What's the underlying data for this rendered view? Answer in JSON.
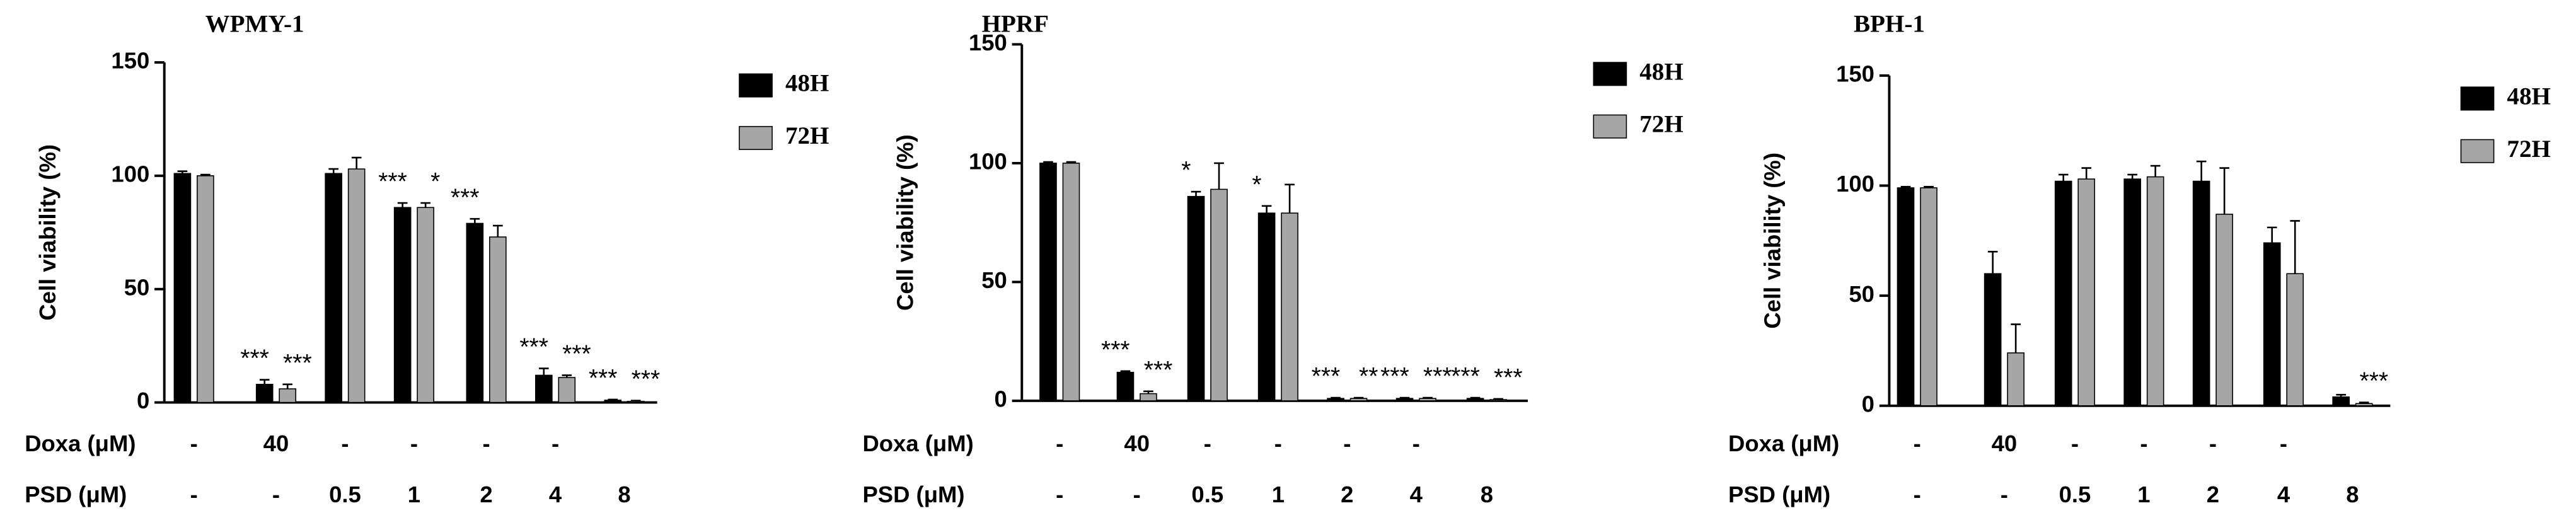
{
  "chart_data": [
    {
      "type": "bar",
      "title": "WPMY-1",
      "ylabel": "Cell viability (%)",
      "ylim": [
        0,
        150
      ],
      "yticks": [
        0,
        50,
        100,
        150
      ],
      "row_labels": [
        "Doxa (μM)",
        "PSD  (μM)"
      ],
      "doxa": [
        "-",
        "40",
        "-",
        "-",
        "-",
        "-",
        null
      ],
      "categories": [
        "-",
        "-",
        "0.5",
        "1",
        "2",
        "4",
        "8"
      ],
      "series": [
        {
          "name": "48H",
          "color": "#000000",
          "values": [
            101,
            8,
            101,
            86,
            79,
            12,
            1
          ],
          "errors": [
            1,
            2,
            2,
            2,
            2,
            3,
            0.3
          ],
          "annotations": [
            null,
            "***",
            null,
            "***",
            "***",
            "***",
            "***"
          ]
        },
        {
          "name": "72H",
          "color": "#a6a6a6",
          "values": [
            100,
            6,
            103,
            86,
            73,
            11,
            0.5
          ],
          "errors": [
            0.5,
            2,
            5,
            2,
            5,
            1,
            0.3
          ],
          "annotations": [
            null,
            "***",
            null,
            "*",
            null,
            "***",
            "***"
          ]
        }
      ]
    },
    {
      "type": "bar",
      "title": "HPRF",
      "ylabel": "Cell viability (%)",
      "ylim": [
        0,
        150
      ],
      "yticks": [
        0,
        50,
        100,
        150
      ],
      "row_labels": [
        "Doxa (μM)",
        "PSD  (μM)"
      ],
      "doxa": [
        "-",
        "40",
        "-",
        "-",
        "-",
        "-",
        null
      ],
      "categories": [
        "-",
        "-",
        "0.5",
        "1",
        "2",
        "4",
        "8"
      ],
      "series": [
        {
          "name": "48H",
          "color": "#000000",
          "values": [
            100,
            12,
            86,
            79,
            1,
            1,
            1
          ],
          "errors": [
            0.5,
            0.5,
            2,
            3,
            0.3,
            0.3,
            0.3
          ],
          "annotations": [
            null,
            "***",
            "*",
            "*",
            "***",
            "***",
            "***"
          ]
        },
        {
          "name": "72H",
          "color": "#a6a6a6",
          "values": [
            100,
            3,
            89,
            79,
            1,
            1,
            0.5
          ],
          "errors": [
            0.5,
            1,
            11,
            12,
            0.3,
            0.3,
            0.3
          ],
          "annotations": [
            null,
            "***",
            null,
            null,
            "**",
            "***",
            "***"
          ]
        }
      ]
    },
    {
      "type": "bar",
      "title": "BPH-1",
      "ylabel": "Cell viability (%)",
      "ylim": [
        0,
        150
      ],
      "yticks": [
        0,
        50,
        100,
        150
      ],
      "row_labels": [
        "Doxa (μM)",
        "PSD  (μM)"
      ],
      "doxa": [
        "-",
        "40",
        "-",
        "-",
        "-",
        "-",
        null
      ],
      "categories": [
        "-",
        "-",
        "0.5",
        "1",
        "2",
        "4",
        "8"
      ],
      "series": [
        {
          "name": "48H",
          "color": "#000000",
          "values": [
            99,
            60,
            102,
            103,
            102,
            74,
            4
          ],
          "errors": [
            0.5,
            10,
            3,
            2,
            9,
            7,
            1
          ],
          "annotations": [
            null,
            null,
            null,
            null,
            null,
            null,
            null
          ]
        },
        {
          "name": "72H",
          "color": "#a6a6a6",
          "values": [
            99,
            24,
            103,
            104,
            87,
            60,
            1
          ],
          "errors": [
            0.5,
            13,
            5,
            5,
            21,
            24,
            0.5
          ],
          "annotations": [
            null,
            null,
            null,
            null,
            null,
            null,
            "***"
          ]
        }
      ]
    }
  ]
}
